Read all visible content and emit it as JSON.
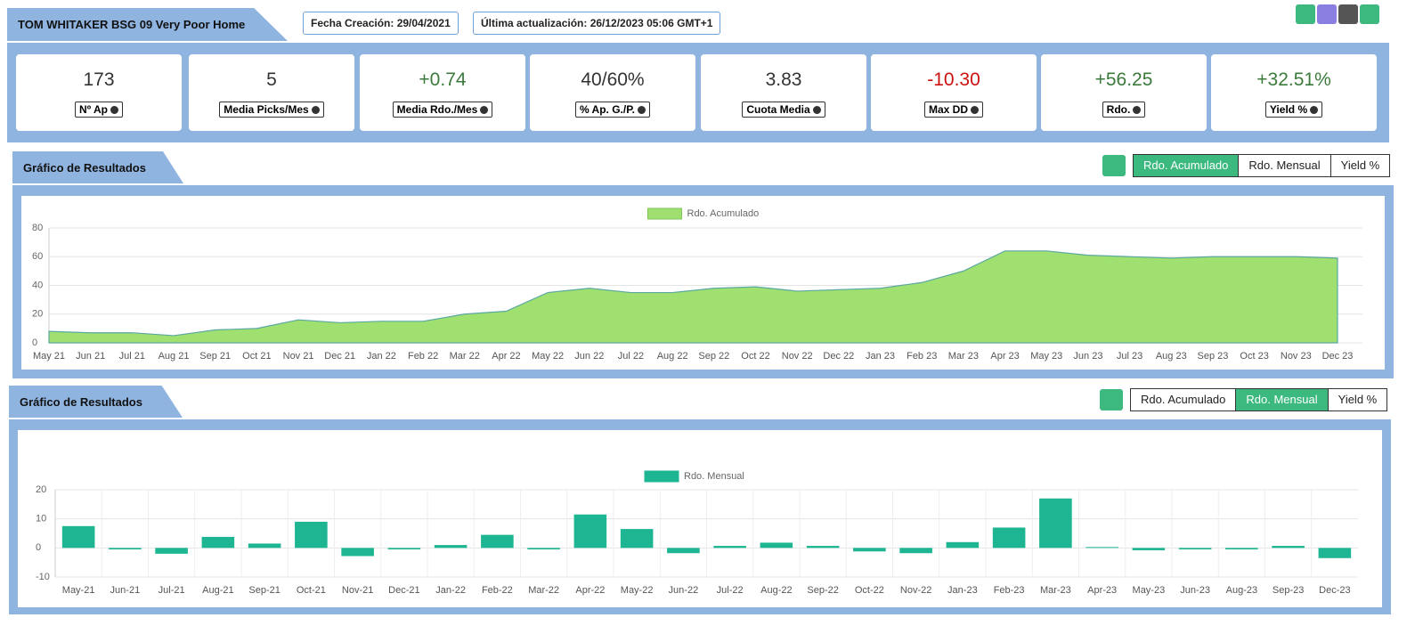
{
  "header": {
    "title": "TOM WHITAKER BSG 09 Very Poor Home",
    "created": "Fecha Creación: 29/04/2021",
    "updated": "Última actualización: 26/12/2023 05:06 GMT+1"
  },
  "stats": [
    {
      "value": "173",
      "label": "Nº Ap",
      "color": "#333333"
    },
    {
      "value": "5",
      "label": "Media Picks/Mes",
      "color": "#333333"
    },
    {
      "value": "+0.74",
      "label": "Media Rdo./Mes",
      "color": "#3c7a3c"
    },
    {
      "value": "40/60%",
      "label": "% Ap. G./P.",
      "color": "#333333"
    },
    {
      "value": "3.83",
      "label": "Cuota Media",
      "color": "#333333"
    },
    {
      "value": "-10.30",
      "label": "Max DD",
      "color": "#cc1111"
    },
    {
      "value": "+56.25",
      "label": "Rdo.",
      "color": "#3c7a3c"
    },
    {
      "value": "+32.51%",
      "label": "Yield %",
      "color": "#3c7a3c"
    }
  ],
  "panels": [
    {
      "title": "Gráfico de Resultados",
      "buttons": [
        "Rdo. Acumulado",
        "Rdo. Mensual",
        "Yield %"
      ],
      "active": 0
    },
    {
      "title": "Gráfico de Resultados",
      "buttons": [
        "Rdo. Acumulado",
        "Rdo. Mensual",
        "Yield %"
      ],
      "active": 1
    }
  ],
  "chart_data": [
    {
      "type": "area",
      "categories": [
        "May 21",
        "Jun 21",
        "Jul 21",
        "Aug 21",
        "Sep 21",
        "Oct 21",
        "Nov 21",
        "Dec 21",
        "Jan 22",
        "Feb 22",
        "Mar 22",
        "Apr 22",
        "May 22",
        "Jun 22",
        "Jul 22",
        "Aug 22",
        "Sep 22",
        "Oct 22",
        "Nov 22",
        "Dec 22",
        "Jan 23",
        "Feb 23",
        "Mar 23",
        "Apr 23",
        "May 23",
        "Jun 23",
        "Jul 23",
        "Aug 23",
        "Sep 23",
        "Oct 23",
        "Nov 23",
        "Dec 23"
      ],
      "series": [
        {
          "name": "Rdo. Acumulado",
          "color": "#a0e070",
          "values": [
            8,
            7,
            7,
            5,
            9,
            10,
            16,
            14,
            15,
            15,
            20,
            22,
            35,
            38,
            35,
            35,
            38,
            39,
            36,
            37,
            38,
            42,
            50,
            64,
            64,
            61,
            60,
            59,
            60,
            60,
            60,
            59
          ]
        }
      ],
      "ylim": [
        0,
        80
      ],
      "yticks": [
        0,
        20,
        40,
        60,
        80
      ],
      "grid": true
    },
    {
      "type": "bar",
      "categories": [
        "May-21",
        "Jun-21",
        "Jul-21",
        "Aug-21",
        "Sep-21",
        "Oct-21",
        "Nov-21",
        "Dec-21",
        "Jan-22",
        "Feb-22",
        "Mar-22",
        "Apr-22",
        "May-22",
        "Jun-22",
        "Jul-22",
        "Aug-22",
        "Sep-22",
        "Oct-22",
        "Nov-22",
        "Jan-23",
        "Feb-23",
        "Mar-23",
        "Apr-23",
        "May-23",
        "Jun-23",
        "Aug-23",
        "Sep-23",
        "Dec-23"
      ],
      "series": [
        {
          "name": "Rdo. Mensual",
          "color": "#1db592",
          "values": [
            7.5,
            -0.5,
            -2,
            3.8,
            1.5,
            9,
            -2.8,
            -0.5,
            1,
            4.5,
            -0.5,
            11.5,
            6.5,
            -1.8,
            0.7,
            1.8,
            0.7,
            -1.2,
            -1.8,
            2,
            7,
            17,
            0.3,
            -0.8,
            -0.5,
            -0.5,
            0.7,
            -3.5
          ]
        }
      ],
      "ylim": [
        -10,
        20
      ],
      "yticks": [
        -10,
        0,
        10,
        20
      ],
      "grid": true
    }
  ]
}
